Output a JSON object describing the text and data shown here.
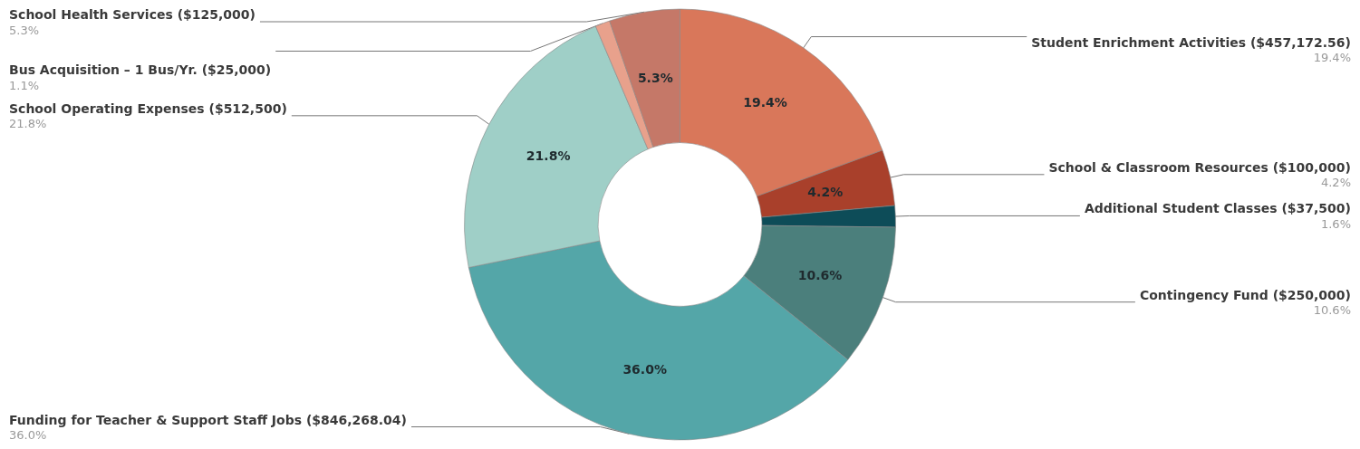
{
  "chart_data": {
    "type": "donut",
    "categories": [
      "Student Enrichment Activities ($457,172.56)",
      "School & Classroom Resources ($100,000)",
      "Additional Student Classes ($37,500)",
      "Contingency Fund ($250,000)",
      "Funding for Teacher & Support Staff Jobs ($846,268.04)",
      "School Operating Expenses ($512,500)",
      "Bus Acquisition – 1 Bus/Yr. ($25,000)",
      "School Health Services ($125,000)"
    ],
    "values": [
      19.4,
      4.2,
      1.6,
      10.6,
      36.0,
      21.8,
      1.1,
      5.3
    ],
    "value_labels": [
      "19.4%",
      "4.2%",
      "1.6%",
      "10.6%",
      "36.0%",
      "21.8%",
      "1.1%",
      "5.3%"
    ],
    "colors": [
      "#d9775a",
      "#a9402b",
      "#0d4c58",
      "#4b7f7c",
      "#54a6a8",
      "#9fcfc7",
      "#e8a18c",
      "#c57868"
    ],
    "legend": false
  }
}
